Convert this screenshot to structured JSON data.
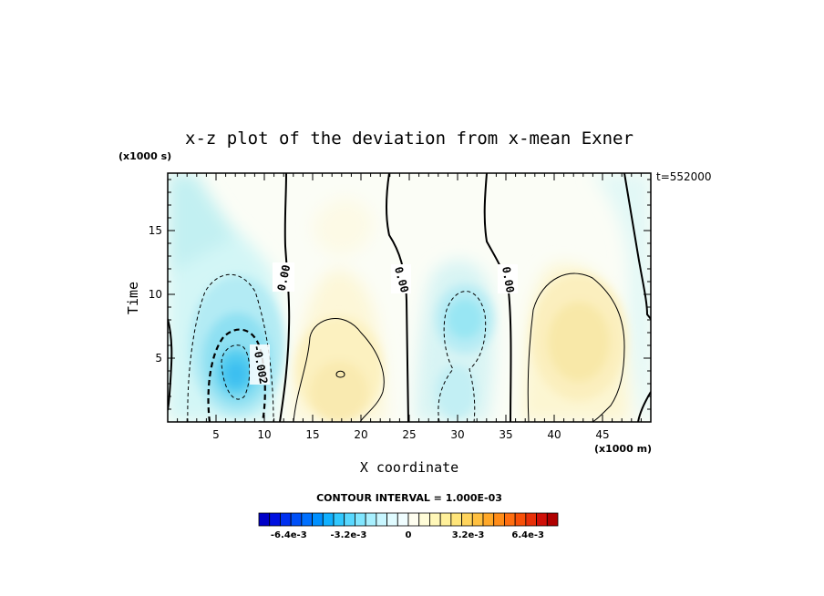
{
  "chart_data": {
    "type": "heatmap",
    "title": "x-z plot of the deviation from x-mean Exner",
    "xlabel": "X coordinate",
    "ylabel": "Time",
    "x_unit_label": "(x1000 m)",
    "y_unit_label": "(x1000 s)",
    "timestamp": "t=552000",
    "xlim": [
      0,
      50
    ],
    "ylim": [
      0,
      19.5
    ],
    "x_ticks": [
      5,
      10,
      15,
      20,
      25,
      30,
      35,
      40,
      45
    ],
    "x_tick_labels": [
      "5",
      "10",
      "15",
      "20",
      "25",
      "30",
      "35",
      "40",
      "45"
    ],
    "y_ticks": [
      5,
      10,
      15
    ],
    "y_tick_labels": [
      "5",
      "10",
      "15"
    ],
    "contour_interval_text": "CONTOUR INTERVAL = 1.000E-03",
    "contour_labels": [
      "0.00",
      "0.00",
      "0.00",
      "-0.002"
    ],
    "colorbar": {
      "min": -0.008,
      "max": 0.008,
      "tick_values": [
        -0.0064,
        -0.0032,
        0,
        0.0032,
        0.0064
      ],
      "tick_labels": [
        "-6.4e-3",
        "-3.2e-3",
        "0",
        "3.2e-3",
        "6.4e-3"
      ]
    },
    "features": [
      {
        "kind": "low",
        "x": 7,
        "y": 4.5,
        "value": -0.004
      },
      {
        "kind": "high",
        "x": 18,
        "y": 4.0,
        "value": 0.0015
      },
      {
        "kind": "low",
        "x": 31,
        "y": 8.0,
        "value": -0.0025
      },
      {
        "kind": "high",
        "x": 41,
        "y": 6.0,
        "value": 0.0013
      }
    ]
  }
}
